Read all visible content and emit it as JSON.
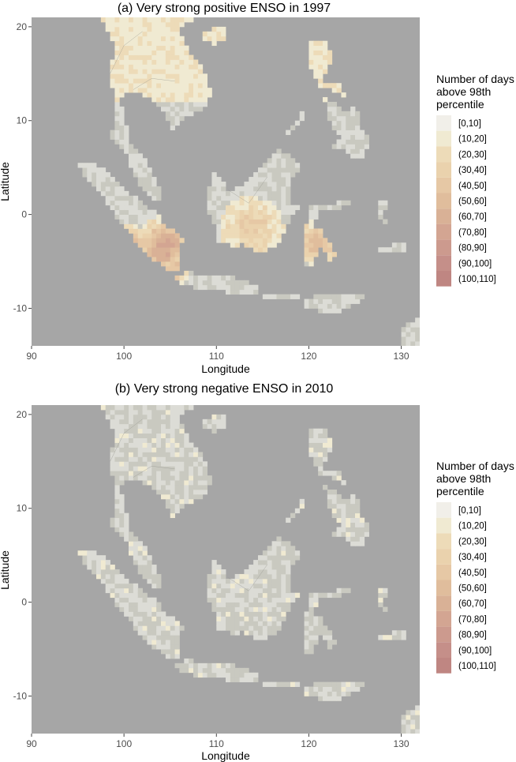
{
  "figure": {
    "panels": [
      {
        "title": "(a) Very strong positive ENSO in 1997",
        "xlabel": "Longitude",
        "ylabel": "Latitude",
        "x_ticks": [
          "90",
          "100",
          "110",
          "120",
          "130"
        ],
        "y_ticks": [
          "20",
          "10",
          "0",
          "-10"
        ],
        "x_tick_values": [
          90,
          100,
          110,
          120,
          130
        ],
        "y_tick_values": [
          20,
          10,
          0,
          -10
        ],
        "xlim": [
          90,
          132
        ],
        "ylim": [
          -14,
          21
        ],
        "intensity": 1.0
      },
      {
        "title": "(b) Very strong negative ENSO in 2010",
        "xlabel": "Longitude",
        "ylabel": "Latitude",
        "x_ticks": [
          "90",
          "100",
          "110",
          "120",
          "130"
        ],
        "y_ticks": [
          "20",
          "10",
          "0",
          "-10"
        ],
        "x_tick_values": [
          90,
          100,
          110,
          120,
          130
        ],
        "y_tick_values": [
          20,
          10,
          0,
          -10
        ],
        "xlim": [
          90,
          132
        ],
        "ylim": [
          -14,
          21
        ],
        "intensity": 0.0
      }
    ],
    "legend": {
      "title_lines": [
        "Number of days",
        "above 98th",
        "percentile"
      ],
      "labels": [
        "[0,10]",
        "(10,20]",
        "(20,30]",
        "(30,40]",
        "(40,50]",
        "(50,60]",
        "(60,70]",
        "(70,80]",
        "(80,90]",
        "(90,100]",
        "(100,110]"
      ],
      "colors": [
        "#f1efe9",
        "#f0ead2",
        "#eddbb8",
        "#ead2ad",
        "#e6c8a5",
        "#e0bd9c",
        "#d9b196",
        "#d3a592",
        "#cc9a8e",
        "#c58f89",
        "#bf8682"
      ]
    },
    "colors": {
      "sea": "#a6a6a6",
      "land_base": "#dcdcd6",
      "land_high": "#c9c9c0",
      "border": "#8a8a84"
    }
  }
}
